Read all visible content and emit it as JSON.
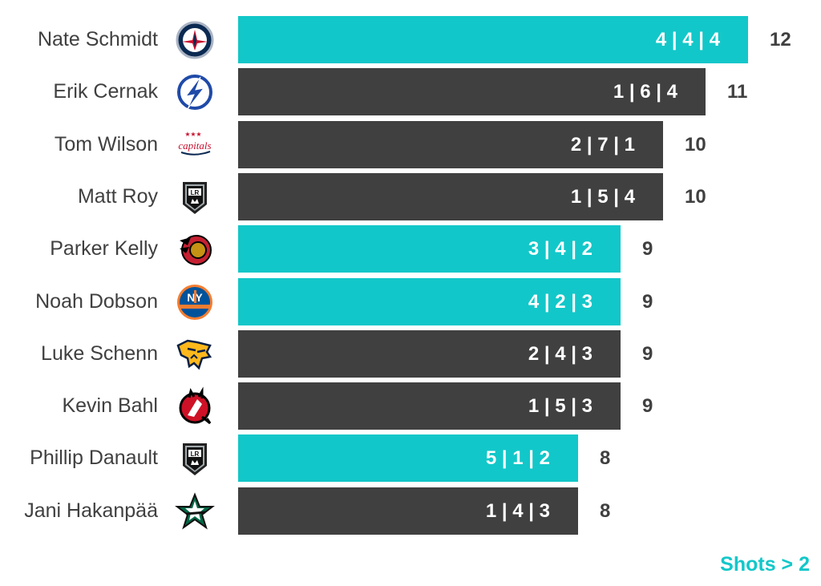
{
  "chart_data": {
    "type": "bar",
    "orientation": "horizontal",
    "categories": [
      "Nate Schmidt",
      "Erik Cernak",
      "Tom Wilson",
      "Matt Roy",
      "Parker Kelly",
      "Noah Dobson",
      "Luke Schenn",
      "Kevin Bahl",
      "Phillip Danault",
      "Jani Hakanpää"
    ],
    "values": [
      12,
      11,
      10,
      10,
      9,
      9,
      9,
      9,
      8,
      8
    ],
    "breakdown_labels": [
      "4 | 4 | 4",
      "1 | 6 | 4",
      "2 | 7 | 1",
      "1 | 5 | 4",
      "3 | 4 | 2",
      "4 | 2 | 3",
      "2 | 4 | 3",
      "1 | 5 | 3",
      "5 | 1 | 2",
      "1 | 4 | 3"
    ],
    "highlighted": [
      true,
      false,
      false,
      false,
      true,
      true,
      false,
      false,
      true,
      false
    ],
    "team_logos": [
      "winnipeg-jets-logo",
      "tampa-bay-lightning-logo",
      "washington-capitals-logo",
      "los-angeles-kings-logo",
      "ottawa-senators-logo",
      "new-york-islanders-logo",
      "nashville-predators-logo",
      "new-jersey-devils-logo",
      "los-angeles-kings-logo",
      "dallas-stars-logo"
    ],
    "legend": {
      "label": "Shots > 2",
      "position": "bottom-right"
    },
    "colors": {
      "highlight": "#12c7c9",
      "default": "#404040",
      "total_text": "#404040"
    },
    "grid": false
  }
}
